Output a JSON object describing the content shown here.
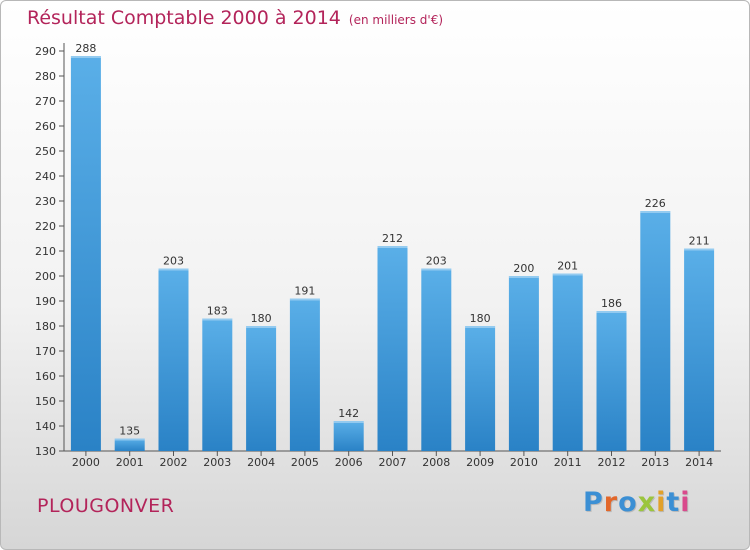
{
  "title": "Résultat Comptable 2000 à 2014",
  "subtitle": "(en milliers d'€)",
  "place": "PLOUGONVER",
  "logo": {
    "letters": [
      "P",
      "r",
      "o",
      "x",
      "i",
      "t",
      "i"
    ],
    "colors": [
      "#3b8fd4",
      "#e2672a",
      "#3b8fd4",
      "#9bc53d",
      "#e2a12a",
      "#3b8fd4",
      "#d94a8c"
    ]
  },
  "colors": {
    "bar_top": "#5aafe8",
    "bar_bottom": "#2a82c6",
    "title": "#b3245a"
  },
  "chart_data": {
    "type": "bar",
    "title": "Résultat Comptable 2000 à 2014",
    "categories": [
      "2000",
      "2001",
      "2002",
      "2003",
      "2004",
      "2005",
      "2006",
      "2007",
      "2008",
      "2009",
      "2010",
      "2011",
      "2012",
      "2013",
      "2014"
    ],
    "values": [
      288,
      135,
      203,
      183,
      180,
      191,
      142,
      212,
      203,
      180,
      200,
      201,
      186,
      226,
      211
    ],
    "ylim": [
      130,
      290
    ],
    "yticks": [
      130,
      140,
      150,
      160,
      170,
      180,
      190,
      200,
      210,
      220,
      230,
      240,
      250,
      260,
      270,
      280,
      290
    ],
    "grid": false,
    "xlabel": "",
    "ylabel": ""
  }
}
